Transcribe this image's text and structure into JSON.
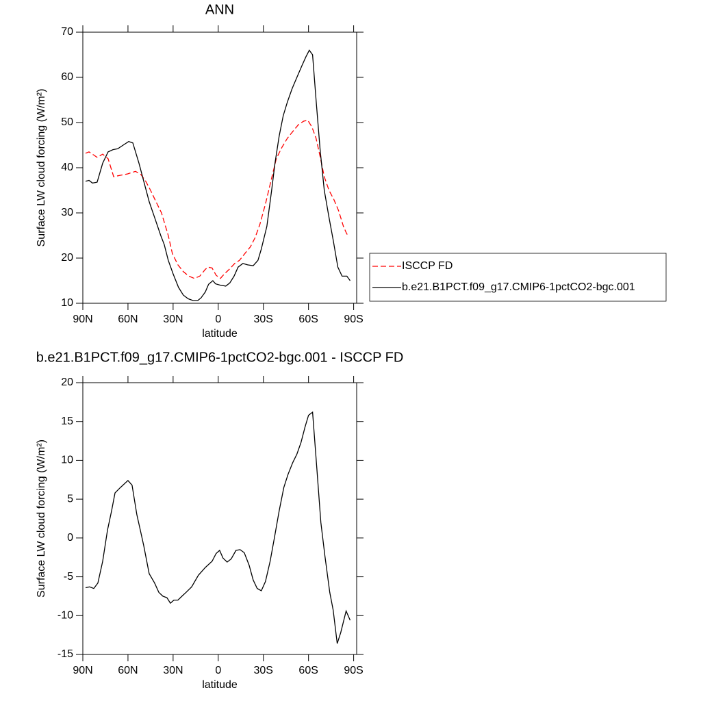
{
  "chart_data": [
    {
      "type": "line",
      "title": "ANN",
      "x_label": "latitude",
      "y_label": "Surface LW cloud forcing (W/m²)",
      "xlim": [
        90,
        -92
      ],
      "xticks": [
        {
          "value": 90,
          "label": "90N"
        },
        {
          "value": 60,
          "label": "60N"
        },
        {
          "value": 30,
          "label": "30N"
        },
        0,
        {
          "value": -30,
          "label": "30S"
        },
        {
          "value": -60,
          "label": "60S"
        },
        {
          "value": -90,
          "label": "90S"
        }
      ],
      "ylim": [
        10,
        70
      ],
      "yticks": [
        10,
        20,
        30,
        40,
        50,
        60,
        70
      ],
      "legend": "right",
      "series": [
        {
          "name": "ISCCP FD",
          "color": "#ff0000",
          "dash": true,
          "x": [
            88.2,
            85.9,
            82.7,
            80.5,
            76.8,
            73.2,
            69.5,
            65.5,
            60.5,
            55,
            51.4,
            48.2,
            45,
            41.4,
            37.7,
            33.2,
            30.5,
            26.8,
            23.2,
            19.5,
            15.9,
            12.3,
            8.6,
            6.8,
            4.1,
            1.4,
            -1.4,
            -4.1,
            -7.3,
            -10.9,
            -14.1,
            -17.7,
            -21.4,
            -24.5,
            -27.7,
            -31.4,
            -35,
            -38.6,
            -42.3,
            -45.9,
            -49.5,
            -53.2,
            -56.8,
            -59.5,
            -62.3,
            -65,
            -67.7,
            -70.5,
            -73.6,
            -76.8,
            -80,
            -83.2,
            -85.5,
            -87.7
          ],
          "values": [
            43.2,
            43.5,
            42.8,
            42.3,
            43,
            42,
            38,
            38.3,
            38.6,
            39.2,
            38.5,
            37,
            35,
            32.5,
            30,
            25,
            21,
            18.5,
            17,
            16,
            15.5,
            16,
            17.5,
            18,
            17.8,
            16.2,
            15.5,
            16.5,
            17.5,
            18.8,
            19.5,
            21,
            22.5,
            24.5,
            27.5,
            32,
            37,
            42,
            44.5,
            46.5,
            48,
            49.5,
            50.3,
            50.5,
            49,
            46.5,
            42.5,
            38,
            35,
            33,
            30.5,
            27,
            25.3,
            25.3
          ]
        },
        {
          "name": "b.e21.B1PCT.f09_g17.CMIP6-1pctCO2-bgc.001",
          "color": "#000000",
          "dash": false,
          "x": [
            88.2,
            85.9,
            83.6,
            80.5,
            76.8,
            73.2,
            70,
            66.8,
            63.2,
            59.5,
            56.8,
            52.7,
            49.5,
            45.9,
            42.3,
            38.2,
            35.9,
            33.2,
            30,
            26.4,
            23.2,
            20,
            16.8,
            13.6,
            11.4,
            8.6,
            6.4,
            3.6,
            1.8,
            -1.4,
            -5,
            -7.7,
            -10.5,
            -13.2,
            -16.4,
            -19.5,
            -23.2,
            -26.4,
            -28.6,
            -32.3,
            -35.5,
            -37.7,
            -40.5,
            -43.2,
            -45.9,
            -49.1,
            -52.3,
            -55.5,
            -58.2,
            -60.5,
            -62.7,
            -65,
            -67.7,
            -70.5,
            -73.6,
            -76.4,
            -79.5,
            -82.3,
            -85.5,
            -87.7
          ],
          "values": [
            37,
            37.2,
            36.6,
            36.8,
            41,
            43.5,
            44,
            44.2,
            45,
            45.8,
            45.5,
            41,
            37,
            32.5,
            29,
            25,
            23,
            19.5,
            16.5,
            13.5,
            11.8,
            11,
            10.6,
            10.6,
            11.2,
            12.5,
            14.2,
            15,
            14.3,
            14,
            13.8,
            14.5,
            16,
            18,
            18.8,
            18.5,
            18.3,
            19.5,
            22,
            27,
            35,
            41,
            47,
            51.5,
            54.5,
            57.5,
            60,
            62.5,
            64.5,
            66,
            65,
            55,
            44,
            35,
            29,
            24,
            18,
            16,
            16,
            15
          ]
        }
      ]
    },
    {
      "type": "line",
      "title": "b.e21.B1PCT.f09_g17.CMIP6-1pctCO2-bgc.001 - ISCCP FD",
      "x_label": "latitude",
      "y_label": "Surface LW cloud forcing (W/m²)",
      "xlim": [
        90,
        -92
      ],
      "xticks": [
        {
          "value": 90,
          "label": "90N"
        },
        {
          "value": 60,
          "label": "60N"
        },
        {
          "value": 30,
          "label": "30N"
        },
        0,
        {
          "value": -30,
          "label": "30S"
        },
        {
          "value": -60,
          "label": "60S"
        },
        {
          "value": -90,
          "label": "90S"
        }
      ],
      "ylim": [
        -15,
        20
      ],
      "yticks": [
        -15,
        -10,
        -5,
        0,
        5,
        10,
        15,
        20
      ],
      "series": [
        {
          "color": "#000000",
          "dash": false,
          "x": [
            88.2,
            85.5,
            82.7,
            80,
            76.8,
            73.6,
            70.9,
            68.6,
            65,
            60,
            57.3,
            54.1,
            51.8,
            49.5,
            45.9,
            42.3,
            39.5,
            36.8,
            34.1,
            31.8,
            29.5,
            26.8,
            24.1,
            21.4,
            17.7,
            13.2,
            8.6,
            4.1,
            1.4,
            -0.9,
            -3.2,
            -5.9,
            -8.6,
            -11.8,
            -14.5,
            -17.3,
            -20.5,
            -23.2,
            -25.9,
            -28.6,
            -31.4,
            -34.5,
            -37.3,
            -40.5,
            -43.6,
            -46.4,
            -49.5,
            -52.3,
            -55,
            -57.7,
            -60,
            -62.7,
            -65.5,
            -68.2,
            -70.9,
            -74.1,
            -76.4,
            -79.1,
            -81.4,
            -85,
            -87.7
          ],
          "values": [
            -6.4,
            -6.3,
            -6.5,
            -5.8,
            -3,
            1,
            3.5,
            5.8,
            6.5,
            7.4,
            6.8,
            3,
            1,
            -1,
            -4.6,
            -5.8,
            -7,
            -7.5,
            -7.7,
            -8.4,
            -8,
            -8,
            -7.5,
            -7,
            -6.3,
            -4.8,
            -3.8,
            -3,
            -2,
            -1.6,
            -2.6,
            -3.1,
            -2.7,
            -1.6,
            -1.5,
            -1.9,
            -3.5,
            -5.4,
            -6.5,
            -6.8,
            -5.6,
            -3,
            0,
            3.5,
            6.5,
            8.2,
            9.7,
            10.8,
            12.3,
            14.3,
            15.8,
            16.2,
            9,
            2,
            -2.3,
            -7,
            -9.3,
            -13.6,
            -12.2,
            -9.4,
            -10.6
          ]
        }
      ]
    }
  ]
}
